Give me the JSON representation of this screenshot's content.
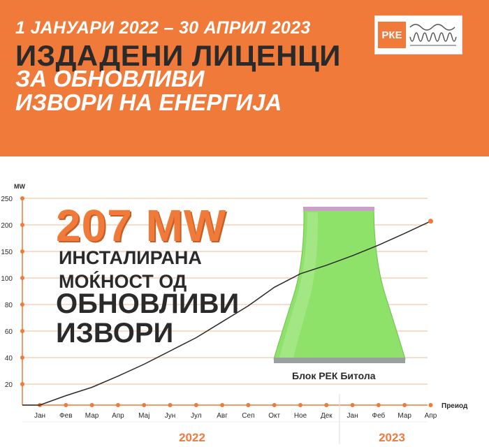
{
  "header": {
    "date_range": "1 ЈАНУАРИ 2022 – 30 АПРИЛ 2023",
    "title": "ИЗДАДЕНИ ЛИЦЕНЦИ",
    "subtitle_line1": "ЗА ОБНОВЛИВИ",
    "subtitle_line2": "ИЗВОРИ НА ЕНЕРГИЈА"
  },
  "logo": {
    "text": "РКЕ"
  },
  "highlight": {
    "value": "207 MW",
    "line1": "ИНСТАЛИРАНА",
    "line2": "МОЌНОСТ ОД",
    "line3": "ОБНОВЛИВИ",
    "line4": "ИЗВОРИ"
  },
  "plant_label": "Блок РЕК Битола",
  "colors": {
    "accent": "#f07a3a",
    "dark_text": "#2a2a2a",
    "plant_green": "#8ee26a"
  },
  "chart_data": {
    "type": "line",
    "ylabel": "MW",
    "xlabel": "Преиод",
    "ylim": [
      0,
      250
    ],
    "y_tick_labels": [
      "20",
      "40",
      "60",
      "80",
      "100",
      "150",
      "200",
      "250"
    ],
    "categories": [
      "Јан",
      "Фев",
      "Мар",
      "Апр",
      "Мај",
      "Јун",
      "Јул",
      "Авг",
      "Сеп",
      "Окт",
      "Ное",
      "Дек",
      "Јан",
      "Феб",
      "Мар",
      "Апр"
    ],
    "year_labels": [
      "2022",
      "2023"
    ],
    "series": [
      {
        "values": [
          0,
          9,
          17,
          26,
          35,
          45,
          55,
          67,
          79,
          93,
          108,
          124,
          142,
          162,
          184,
          207
        ]
      }
    ],
    "end_value": 207
  }
}
